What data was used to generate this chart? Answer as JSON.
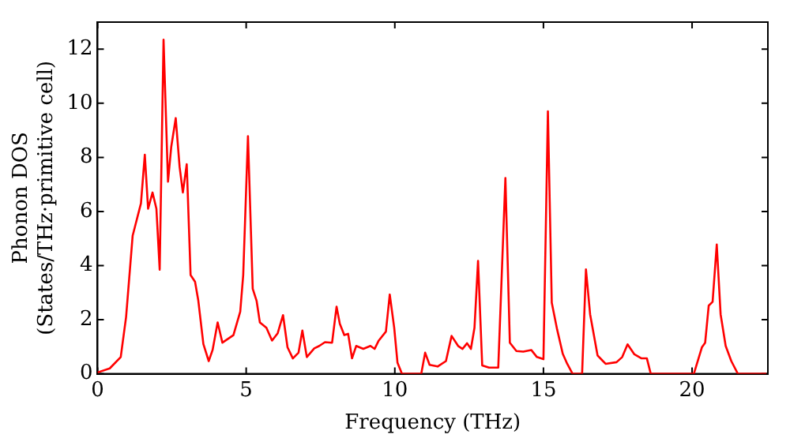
{
  "chart_data": {
    "type": "line",
    "xlabel": "Frequency (THz)",
    "ylabel": "Phonon DOS\n(States/THz·primitive cell)",
    "xlim": [
      0,
      22.55
    ],
    "ylim": [
      0,
      13
    ],
    "xticks": [
      0,
      5,
      10,
      15,
      20
    ],
    "yticks": [
      0,
      2,
      4,
      6,
      8,
      10,
      12
    ],
    "grid": false,
    "legend": false,
    "marker": "none",
    "line_style": "solid",
    "series": [
      {
        "color": "#ff0000",
        "x": [
          0,
          0.41,
          0.78,
          0.96,
          1.18,
          1.46,
          1.59,
          1.7,
          1.85,
          1.98,
          2.09,
          2.22,
          2.37,
          2.48,
          2.63,
          2.76,
          2.87,
          3.0,
          3.13,
          3.28,
          3.39,
          3.56,
          3.74,
          3.87,
          4.04,
          4.2,
          4.57,
          4.8,
          4.9,
          5.06,
          5.22,
          5.35,
          5.46,
          5.68,
          5.87,
          6.06,
          6.24,
          6.39,
          6.57,
          6.76,
          6.89,
          7.04,
          7.29,
          7.46,
          7.65,
          7.89,
          8.04,
          8.15,
          8.3,
          8.43,
          8.56,
          8.7,
          8.94,
          9.18,
          9.32,
          9.46,
          9.7,
          9.83,
          9.98,
          10.09,
          10.24,
          10.89,
          11.02,
          11.17,
          11.44,
          11.72,
          11.91,
          12.13,
          12.28,
          12.43,
          12.56,
          12.68,
          12.8,
          12.94,
          13.17,
          13.48,
          13.72,
          13.87,
          14.09,
          14.32,
          14.59,
          14.78,
          15.0,
          15.15,
          15.28,
          15.46,
          15.65,
          15.8,
          15.98,
          16.3,
          16.43,
          16.57,
          16.82,
          17.09,
          17.46,
          17.65,
          17.83,
          18.06,
          18.3,
          18.48,
          18.61,
          20.06,
          20.33,
          20.44,
          20.56,
          20.69,
          20.83,
          20.96,
          21.13,
          21.32,
          21.54,
          22.5
        ],
        "values": [
          0.05,
          0.2,
          0.62,
          2.1,
          5.1,
          6.3,
          8.1,
          6.1,
          6.7,
          6.1,
          3.85,
          12.35,
          7.1,
          8.4,
          9.45,
          7.65,
          6.7,
          7.75,
          3.65,
          3.4,
          2.7,
          1.1,
          0.47,
          0.88,
          1.9,
          1.15,
          1.43,
          2.3,
          3.65,
          8.78,
          3.14,
          2.7,
          1.9,
          1.7,
          1.23,
          1.5,
          2.17,
          0.98,
          0.57,
          0.78,
          1.6,
          0.62,
          0.94,
          1.03,
          1.17,
          1.15,
          2.48,
          1.85,
          1.43,
          1.48,
          0.57,
          1.03,
          0.92,
          1.03,
          0.92,
          1.23,
          1.56,
          2.93,
          1.7,
          0.41,
          0,
          0,
          0.78,
          0.33,
          0.27,
          0.47,
          1.4,
          1.03,
          0.92,
          1.13,
          0.92,
          1.7,
          4.17,
          0.31,
          0.23,
          0.23,
          7.24,
          1.15,
          0.84,
          0.82,
          0.88,
          0.62,
          0.54,
          9.7,
          2.63,
          1.64,
          0.74,
          0.37,
          0,
          0,
          3.86,
          2.2,
          0.68,
          0.37,
          0.43,
          0.62,
          1.09,
          0.72,
          0.57,
          0.57,
          0,
          0,
          0.98,
          1.15,
          2.52,
          2.66,
          4.78,
          2.2,
          1.03,
          0.47,
          0,
          0
        ]
      }
    ]
  }
}
